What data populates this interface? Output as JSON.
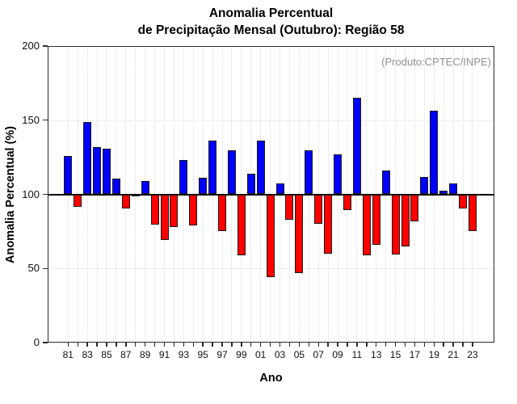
{
  "figure": {
    "title_line1": "Anomalia Percentual",
    "title_line2": "de Precipitação Mensal (Outubro): Região 58",
    "annotation": "(Produto:CPTEC/INPE)",
    "x_axis_title": "Ano",
    "y_axis_title": "Anomalia Percentual (%)"
  },
  "chart_data": {
    "type": "bar",
    "title": "Anomalia Percentual de Precipitação Mensal (Outubro): Região 58",
    "xlabel": "Ano",
    "ylabel": "Anomalia Percentual (%)",
    "ylim": [
      0,
      200
    ],
    "y_ticks": [
      0,
      50,
      100,
      150,
      200
    ],
    "h_gridlines": [
      50,
      150
    ],
    "baseline": 100,
    "grid": "dotted light-gray: vertical per year, horizontal at 50 and 150; solid black line at 100",
    "legend_position": "none",
    "annotation": "(Produto:CPTEC/INPE)",
    "bar_color_above": "#0000ff",
    "bar_color_below": "#ff0000",
    "categories": [
      "1981",
      "1982",
      "1983",
      "1984",
      "1985",
      "1986",
      "1987",
      "1988",
      "1989",
      "1990",
      "1991",
      "1992",
      "1993",
      "1994",
      "1995",
      "1996",
      "1997",
      "1998",
      "1999",
      "2000",
      "2001",
      "2002",
      "2003",
      "2004",
      "2005",
      "2006",
      "2007",
      "2008",
      "2009",
      "2010",
      "2011",
      "2012",
      "2013",
      "2014",
      "2015",
      "2016",
      "2017",
      "2018",
      "2019",
      "2020",
      "2021",
      "2022",
      "2023"
    ],
    "x_tick_labels": [
      "81",
      "83",
      "85",
      "87",
      "89",
      "91",
      "93",
      "95",
      "97",
      "99",
      "01",
      "03",
      "05",
      "07",
      "09",
      "11",
      "13",
      "15",
      "17",
      "19",
      "21",
      "23"
    ],
    "values": [
      126,
      91.5,
      149,
      132,
      131,
      110.5,
      90.5,
      98.5,
      109,
      79.5,
      69,
      78,
      123,
      79,
      111,
      136.5,
      75,
      129.5,
      59,
      114,
      136.5,
      44,
      107.5,
      83,
      47,
      129.5,
      80,
      60,
      127,
      89.5,
      165,
      59,
      66,
      116,
      59.5,
      65,
      82,
      111.5,
      156.5,
      102.5,
      107.5,
      90.5,
      75
    ]
  }
}
